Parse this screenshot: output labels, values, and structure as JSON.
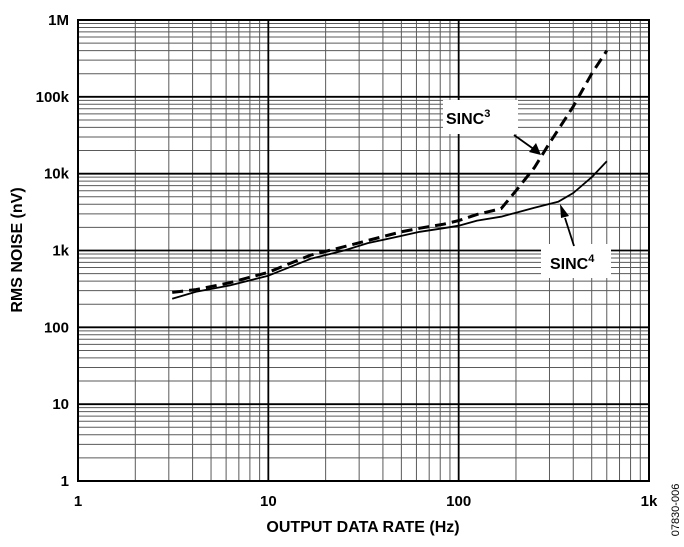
{
  "chart_data": {
    "type": "line",
    "xlabel": "OUTPUT DATA RATE (Hz)",
    "ylabel": "RMS NOISE (nV)",
    "x_scale": "log",
    "y_scale": "log",
    "xlim": [
      1,
      1000
    ],
    "ylim": [
      1,
      1000000
    ],
    "x_ticks": [
      1,
      10,
      100,
      1000
    ],
    "x_tick_labels": [
      "1",
      "10",
      "100",
      "1k"
    ],
    "y_ticks": [
      1,
      10,
      100,
      1000,
      10000,
      100000,
      1000000
    ],
    "y_tick_labels": [
      "1",
      "10",
      "100",
      "1k",
      "10k",
      "100k",
      "1M"
    ],
    "grid": true,
    "figure_code": "07830-006",
    "series": [
      {
        "name": "SINC3",
        "style": "dashed",
        "x": [
          3.125,
          4.17,
          6.25,
          10,
          16.7,
          25,
          33.3,
          50,
          62.5,
          83.3,
          100,
          125,
          167,
          200,
          250,
          300,
          400,
          500,
          600
        ],
        "y": [
          285,
          310,
          380,
          520,
          870,
          1120,
          1350,
          1750,
          1950,
          2200,
          2450,
          2950,
          3500,
          6000,
          12000,
          25000,
          75000,
          200000,
          400000
        ]
      },
      {
        "name": "SINC4",
        "style": "solid",
        "x": [
          3.125,
          4.17,
          6.25,
          10,
          16.7,
          25,
          33.3,
          50,
          62.5,
          83.3,
          100,
          125,
          167,
          200,
          250,
          333,
          400,
          500,
          600
        ],
        "y": [
          235,
          290,
          350,
          470,
          780,
          1000,
          1250,
          1550,
          1750,
          1950,
          2100,
          2450,
          2750,
          3100,
          3600,
          4300,
          5600,
          9000,
          14500
        ]
      }
    ],
    "annotations": [
      {
        "text": "SINC",
        "superscript": "3",
        "x": 250,
        "y": 16000
      },
      {
        "text": "SINC",
        "superscript": "4",
        "x": 333,
        "y": 4300
      }
    ]
  }
}
